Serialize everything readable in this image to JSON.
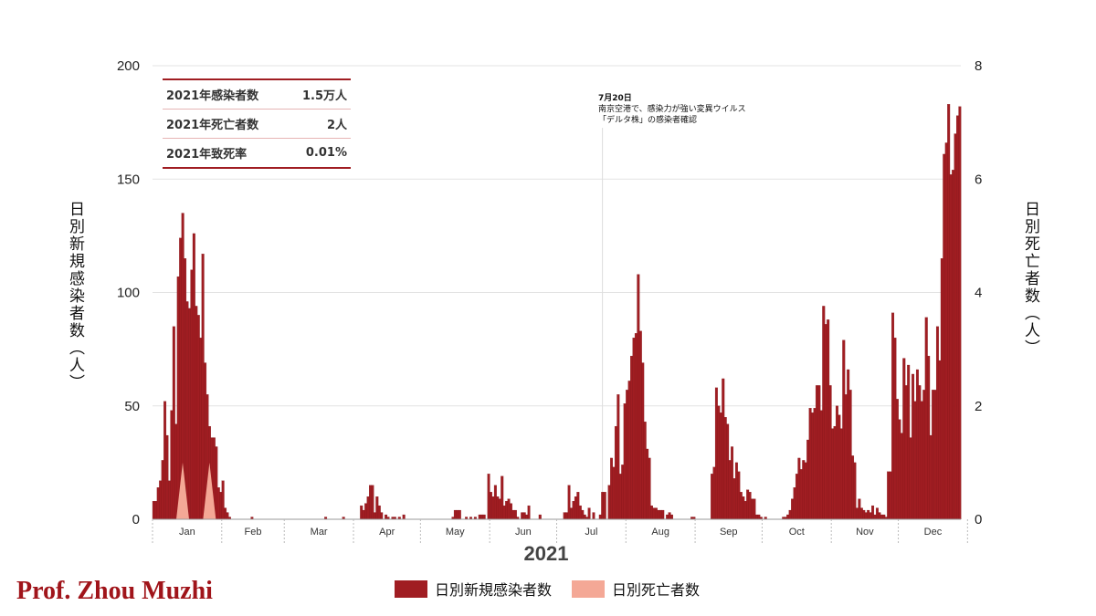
{
  "colors": {
    "cases": "#a01d22",
    "deaths": "#f4a896",
    "grid": "#e3e3e3",
    "credit": "#a0141a"
  },
  "credit": "Prof. Zhou Muzhi",
  "summary": {
    "rows": [
      {
        "label": "2021年感染者数",
        "value": "1.5万人"
      },
      {
        "label": "2021年死亡者数",
        "value": "2人"
      },
      {
        "label": "2021年致死率",
        "value": "0.01%"
      }
    ]
  },
  "annotation": {
    "date": "7月20日",
    "line1": "南京空港で、感染力が強い変異ウイルス",
    "line2": "「デルタ株」の感染者確認"
  },
  "legend": {
    "cases": "日別新規感染者数",
    "deaths": "日別死亡者数"
  },
  "chart_data": {
    "type": "bar",
    "xlabel": "2021",
    "ylabel": "日別新規感染者数（人）",
    "ylabel_right": "日別死亡者数（人）",
    "ylim": [
      0,
      200
    ],
    "ylim_right": [
      0,
      8
    ],
    "yticks": [
      0,
      50,
      100,
      150,
      200
    ],
    "yticks_right": [
      0,
      2,
      4,
      6,
      8
    ],
    "months": [
      "Jan",
      "Feb",
      "Mar",
      "Apr",
      "May",
      "Jun",
      "Jul",
      "Aug",
      "Sep",
      "Oct",
      "Nov",
      "Dec"
    ],
    "grid": true,
    "annotation_day": 201,
    "series": [
      {
        "name": "日別新規感染者数",
        "axis": "left",
        "values": [
          8,
          8,
          14,
          17,
          26,
          52,
          37,
          17,
          48,
          85,
          42,
          107,
          124,
          135,
          115,
          96,
          93,
          110,
          126,
          94,
          90,
          80,
          117,
          69,
          55,
          41,
          36,
          36,
          32,
          14,
          12,
          17,
          5,
          3,
          1,
          0,
          0,
          0,
          0,
          0,
          0,
          0,
          0,
          0,
          1,
          0,
          0,
          0,
          0,
          0,
          0,
          0,
          0,
          0,
          0,
          0,
          0,
          0,
          0,
          0,
          0,
          0,
          0,
          0,
          0,
          0,
          0,
          0,
          0,
          0,
          0,
          0,
          0,
          0,
          0,
          0,
          0,
          1,
          0,
          0,
          0,
          0,
          0,
          0,
          0,
          1,
          0,
          0,
          0,
          0,
          0,
          0,
          0,
          6,
          4,
          7,
          10,
          15,
          15,
          3,
          10,
          6,
          3,
          0,
          2,
          1,
          0,
          1,
          1,
          0,
          1,
          0,
          2,
          0,
          0,
          0,
          0,
          0,
          0,
          0,
          0,
          0,
          0,
          0,
          0,
          0,
          0,
          0,
          0,
          0,
          0,
          0,
          0,
          0,
          1,
          4,
          4,
          4,
          0,
          0,
          1,
          0,
          1,
          0,
          1,
          0,
          2,
          2,
          2,
          0,
          20,
          12,
          10,
          15,
          10,
          9,
          19,
          6,
          8,
          9,
          7,
          4,
          4,
          1,
          0,
          3,
          3,
          2,
          6,
          0,
          0,
          0,
          0,
          2,
          0,
          0,
          0,
          0,
          0,
          0,
          0,
          0,
          0,
          0,
          3,
          3,
          15,
          5,
          8,
          10,
          12,
          6,
          4,
          2,
          1,
          5,
          0,
          3,
          0,
          0,
          2,
          12,
          12,
          0,
          15,
          27,
          23,
          41,
          55,
          20,
          24,
          51,
          57,
          61,
          72,
          80,
          82,
          108,
          83,
          69,
          43,
          31,
          27,
          6,
          5,
          5,
          4,
          4,
          4,
          0,
          2,
          3,
          2,
          0,
          0,
          0,
          0,
          0,
          0,
          0,
          0,
          1,
          1,
          0,
          0,
          0,
          0,
          0,
          0,
          0,
          20,
          23,
          58,
          50,
          47,
          62,
          45,
          42,
          26,
          32,
          18,
          25,
          21,
          12,
          10,
          8,
          13,
          12,
          9,
          9,
          2,
          2,
          1,
          0,
          1,
          0,
          0,
          0,
          0,
          0,
          0,
          0,
          1,
          1,
          2,
          4,
          9,
          14,
          20,
          27,
          22,
          26,
          25,
          35,
          49,
          47,
          49,
          59,
          59,
          48,
          94,
          86,
          88,
          59,
          40,
          41,
          50,
          46,
          40,
          79,
          55,
          66,
          57,
          28,
          25,
          5,
          9,
          5,
          4,
          3,
          4,
          3,
          6,
          2,
          5,
          3,
          2,
          2,
          1,
          21,
          21,
          91,
          80,
          53,
          44,
          38,
          71,
          59,
          68,
          36,
          64,
          52,
          66,
          59,
          52,
          57,
          89,
          72,
          37,
          57,
          57,
          85,
          70,
          115,
          161,
          166,
          183,
          152,
          154,
          170,
          178,
          182
        ]
      },
      {
        "name": "日別死亡者数",
        "axis": "right",
        "points": [
          {
            "day": 13,
            "value": 1
          },
          {
            "day": 25,
            "value": 1
          }
        ]
      }
    ]
  }
}
